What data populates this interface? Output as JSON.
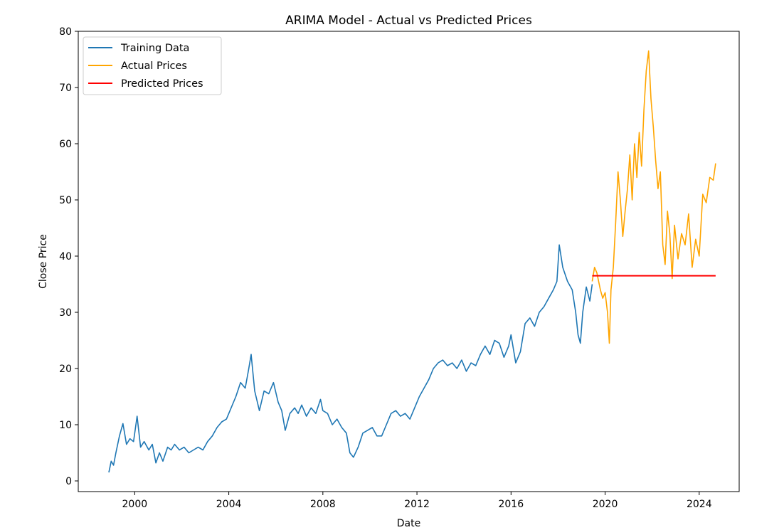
{
  "chart_data": {
    "type": "line",
    "title": "ARIMA Model - Actual vs Predicted Prices",
    "xlabel": "Date",
    "ylabel": "Close Price",
    "xlim": [
      1997.6,
      2025.7
    ],
    "ylim": [
      -1.9,
      80
    ],
    "x_ticks": [
      2000,
      2004,
      2008,
      2012,
      2016,
      2020,
      2024
    ],
    "y_ticks": [
      0,
      10,
      20,
      30,
      40,
      50,
      60,
      70,
      80
    ],
    "grid": false,
    "legend_position": "top-left",
    "series": [
      {
        "name": "Training Data",
        "color": "#1f77b4",
        "x": [
          1998.9,
          1999.0,
          1999.1,
          1999.2,
          1999.35,
          1999.5,
          1999.65,
          1999.8,
          1999.95,
          2000.1,
          2000.25,
          2000.4,
          2000.6,
          2000.75,
          2000.9,
          2001.05,
          2001.2,
          2001.4,
          2001.55,
          2001.7,
          2001.9,
          2002.1,
          2002.3,
          2002.5,
          2002.7,
          2002.9,
          2003.1,
          2003.3,
          2003.5,
          2003.7,
          2003.9,
          2004.1,
          2004.3,
          2004.5,
          2004.7,
          2004.85,
          2004.95,
          2005.1,
          2005.3,
          2005.5,
          2005.7,
          2005.9,
          2006.1,
          2006.25,
          2006.4,
          2006.6,
          2006.8,
          2006.95,
          2007.1,
          2007.3,
          2007.5,
          2007.7,
          2007.9,
          2008.0,
          2008.2,
          2008.4,
          2008.6,
          2008.8,
          2009.0,
          2009.15,
          2009.3,
          2009.5,
          2009.7,
          2009.9,
          2010.1,
          2010.3,
          2010.5,
          2010.7,
          2010.9,
          2011.1,
          2011.3,
          2011.5,
          2011.7,
          2011.9,
          2012.1,
          2012.3,
          2012.5,
          2012.7,
          2012.9,
          2013.1,
          2013.3,
          2013.5,
          2013.7,
          2013.9,
          2014.1,
          2014.3,
          2014.5,
          2014.7,
          2014.9,
          2015.1,
          2015.3,
          2015.5,
          2015.7,
          2015.9,
          2016.0,
          2016.2,
          2016.4,
          2016.6,
          2016.8,
          2017.0,
          2017.2,
          2017.4,
          2017.6,
          2017.8,
          2017.95,
          2018.05,
          2018.2,
          2018.4,
          2018.6,
          2018.75,
          2018.85,
          2018.95,
          2019.05,
          2019.2,
          2019.35,
          2019.45
        ],
        "y": [
          1.5,
          3.5,
          2.8,
          5.0,
          8.0,
          10.2,
          6.5,
          7.5,
          7.0,
          11.5,
          6.0,
          7.0,
          5.5,
          6.5,
          3.2,
          5.0,
          3.5,
          6.0,
          5.5,
          6.5,
          5.5,
          6.0,
          5.0,
          5.5,
          6.0,
          5.5,
          7.0,
          8.0,
          9.5,
          10.5,
          11.0,
          13.0,
          15.0,
          17.5,
          16.5,
          20.0,
          22.5,
          16.0,
          12.5,
          16.0,
          15.5,
          17.5,
          14.0,
          12.5,
          9.0,
          12.0,
          13.0,
          12.0,
          13.5,
          11.5,
          13.0,
          12.0,
          14.5,
          12.5,
          12.0,
          10.0,
          11.0,
          9.5,
          8.5,
          5.0,
          4.2,
          6.0,
          8.5,
          9.0,
          9.5,
          8.0,
          8.0,
          10.0,
          12.0,
          12.5,
          11.5,
          12.0,
          11.0,
          13.0,
          15.0,
          16.5,
          18.0,
          20.0,
          21.0,
          21.5,
          20.5,
          21.0,
          20.0,
          21.5,
          19.5,
          21.0,
          20.5,
          22.5,
          24.0,
          22.5,
          25.0,
          24.5,
          22.0,
          24.0,
          26.0,
          21.0,
          23.0,
          28.0,
          29.0,
          27.5,
          30.0,
          31.0,
          32.5,
          34.0,
          35.5,
          42.0,
          38.0,
          35.5,
          34.0,
          30.0,
          26.0,
          24.5,
          30.0,
          34.5,
          32.0,
          35.0
        ]
      },
      {
        "name": "Actual Prices",
        "color": "#ffa500",
        "x": [
          2019.45,
          2019.55,
          2019.65,
          2019.8,
          2019.9,
          2020.0,
          2020.1,
          2020.18,
          2020.25,
          2020.35,
          2020.45,
          2020.55,
          2020.65,
          2020.75,
          2020.85,
          2020.95,
          2021.05,
          2021.15,
          2021.25,
          2021.35,
          2021.45,
          2021.55,
          2021.65,
          2021.75,
          2021.85,
          2021.95,
          2022.05,
          2022.15,
          2022.25,
          2022.35,
          2022.45,
          2022.55,
          2022.65,
          2022.75,
          2022.85,
          2022.95,
          2023.1,
          2023.25,
          2023.4,
          2023.55,
          2023.7,
          2023.85,
          2024.0,
          2024.15,
          2024.3,
          2024.45,
          2024.6,
          2024.7
        ],
        "y": [
          35.5,
          38.0,
          37.0,
          34.0,
          32.5,
          33.5,
          30.0,
          24.5,
          34.0,
          38.0,
          46.0,
          55.0,
          50.0,
          43.5,
          48.0,
          52.0,
          58.0,
          50.0,
          60.0,
          54.0,
          62.0,
          56.0,
          66.0,
          73.0,
          76.5,
          68.0,
          63.0,
          57.0,
          52.0,
          55.0,
          42.0,
          38.5,
          48.0,
          44.0,
          36.0,
          45.5,
          39.5,
          44.0,
          42.0,
          47.5,
          38.0,
          43.0,
          40.0,
          51.0,
          49.5,
          54.0,
          53.5,
          56.5
        ]
      },
      {
        "name": "Predicted Prices",
        "color": "#ff0000",
        "x": [
          2019.45,
          2024.7
        ],
        "y": [
          36.5,
          36.5
        ]
      }
    ]
  }
}
